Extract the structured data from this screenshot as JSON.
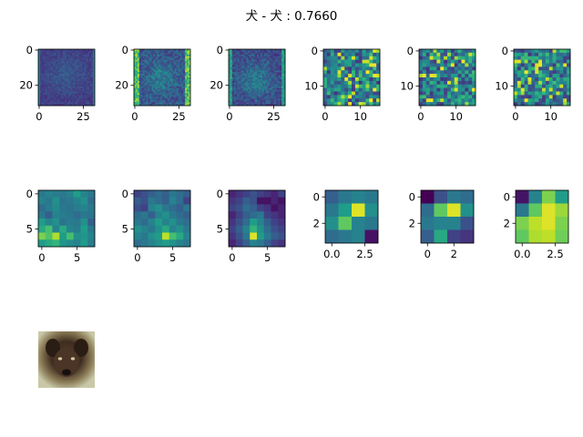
{
  "title": "犬 - 犬 : 0.7660",
  "colormap": "viridis",
  "chart_data": [
    {
      "type": "heatmap",
      "panel": "conv1-a",
      "size": 32,
      "pattern": "fmap32a",
      "xticks": [
        "0",
        "25"
      ],
      "yticks": [
        "0",
        "20"
      ]
    },
    {
      "type": "heatmap",
      "panel": "conv1-b",
      "size": 32,
      "pattern": "fmap32b",
      "xticks": [
        "0",
        "25"
      ],
      "yticks": [
        "0",
        "20"
      ]
    },
    {
      "type": "heatmap",
      "panel": "conv1-c",
      "size": 32,
      "pattern": "fmap32c",
      "xticks": [
        "0",
        "25"
      ],
      "yticks": [
        "0",
        "20"
      ]
    },
    {
      "type": "heatmap",
      "panel": "conv2-a",
      "size": 16,
      "pattern": "noise",
      "seed": 11,
      "xticks": [
        "0",
        "10"
      ],
      "yticks": [
        "0",
        "10"
      ]
    },
    {
      "type": "heatmap",
      "panel": "conv2-b",
      "size": 16,
      "pattern": "noise",
      "seed": 23,
      "xticks": [
        "0",
        "10"
      ],
      "yticks": [
        "0",
        "10"
      ]
    },
    {
      "type": "heatmap",
      "panel": "conv2-c",
      "size": 16,
      "pattern": "noise",
      "seed": 37,
      "xticks": [
        "0",
        "10"
      ],
      "yticks": [
        "0",
        "10"
      ]
    },
    {
      "type": "heatmap",
      "panel": "conv3-a",
      "size": 8,
      "xticks": [
        "0",
        "5"
      ],
      "yticks": [
        "0",
        "5"
      ],
      "values": [
        [
          0.4,
          0.45,
          0.42,
          0.4,
          0.45,
          0.55,
          0.45,
          0.4
        ],
        [
          0.45,
          0.4,
          0.5,
          0.38,
          0.4,
          0.45,
          0.5,
          0.35
        ],
        [
          0.35,
          0.42,
          0.48,
          0.4,
          0.38,
          0.42,
          0.45,
          0.4
        ],
        [
          0.4,
          0.3,
          0.45,
          0.42,
          0.4,
          0.35,
          0.4,
          0.38
        ],
        [
          0.55,
          0.45,
          0.5,
          0.38,
          0.42,
          0.4,
          0.5,
          0.3
        ],
        [
          0.6,
          0.7,
          0.45,
          0.6,
          0.45,
          0.42,
          0.55,
          0.4
        ],
        [
          0.8,
          0.72,
          0.88,
          0.55,
          0.7,
          0.5,
          0.52,
          0.45
        ],
        [
          0.55,
          0.6,
          0.65,
          0.52,
          0.48,
          0.45,
          0.55,
          0.42
        ]
      ]
    },
    {
      "type": "heatmap",
      "panel": "conv3-b",
      "size": 8,
      "xticks": [
        "0",
        "5"
      ],
      "yticks": [
        "0",
        "5"
      ],
      "values": [
        [
          0.2,
          0.25,
          0.3,
          0.35,
          0.3,
          0.4,
          0.35,
          0.3
        ],
        [
          0.3,
          0.25,
          0.4,
          0.35,
          0.3,
          0.45,
          0.35,
          0.2
        ],
        [
          0.25,
          0.2,
          0.45,
          0.5,
          0.4,
          0.35,
          0.3,
          0.4
        ],
        [
          0.35,
          0.4,
          0.3,
          0.45,
          0.5,
          0.4,
          0.35,
          0.3
        ],
        [
          0.4,
          0.35,
          0.45,
          0.55,
          0.45,
          0.5,
          0.4,
          0.35
        ],
        [
          0.5,
          0.45,
          0.4,
          0.5,
          0.6,
          0.45,
          0.5,
          0.4
        ],
        [
          0.45,
          0.4,
          0.5,
          0.55,
          0.9,
          0.7,
          0.6,
          0.45
        ],
        [
          0.35,
          0.4,
          0.45,
          0.5,
          0.55,
          0.5,
          0.45,
          0.4
        ]
      ]
    },
    {
      "type": "heatmap",
      "panel": "conv3-c",
      "size": 8,
      "xticks": [
        "0",
        "5"
      ],
      "yticks": [
        "0",
        "5"
      ],
      "values": [
        [
          0.1,
          0.15,
          0.2,
          0.25,
          0.2,
          0.15,
          0.1,
          0.2
        ],
        [
          0.15,
          0.2,
          0.3,
          0.25,
          0.05,
          0.05,
          0.1,
          0.05
        ],
        [
          0.2,
          0.25,
          0.35,
          0.3,
          0.2,
          0.15,
          0.05,
          0.1
        ],
        [
          0.1,
          0.2,
          0.3,
          0.35,
          0.4,
          0.2,
          0.15,
          0.1
        ],
        [
          0.15,
          0.25,
          0.35,
          0.55,
          0.45,
          0.3,
          0.2,
          0.15
        ],
        [
          0.2,
          0.3,
          0.45,
          0.65,
          0.5,
          0.35,
          0.25,
          0.2
        ],
        [
          0.15,
          0.25,
          0.4,
          0.95,
          0.55,
          0.4,
          0.3,
          0.25
        ],
        [
          0.1,
          0.2,
          0.3,
          0.45,
          0.4,
          0.3,
          0.2,
          0.15
        ]
      ]
    },
    {
      "type": "heatmap",
      "panel": "conv4-a",
      "size": 4,
      "xticks": [
        "0.0",
        "2.5"
      ],
      "yticks": [
        "0",
        "2"
      ],
      "values": [
        [
          0.3,
          0.4,
          0.45,
          0.4
        ],
        [
          0.4,
          0.55,
          0.95,
          0.5
        ],
        [
          0.5,
          0.75,
          0.45,
          0.4
        ],
        [
          0.35,
          0.4,
          0.45,
          0.05
        ]
      ]
    },
    {
      "type": "heatmap",
      "panel": "conv4-b",
      "size": 4,
      "xticks": [
        "0",
        "2"
      ],
      "yticks": [
        "0",
        "2"
      ],
      "values": [
        [
          0.0,
          0.25,
          0.4,
          0.35
        ],
        [
          0.35,
          0.75,
          0.95,
          0.5
        ],
        [
          0.4,
          0.45,
          0.45,
          0.25
        ],
        [
          0.3,
          0.6,
          0.2,
          0.15
        ]
      ]
    },
    {
      "type": "heatmap",
      "panel": "conv4-c",
      "size": 4,
      "xticks": [
        "0.0",
        "2.5"
      ],
      "yticks": [
        "0",
        "2"
      ],
      "values": [
        [
          0.05,
          0.45,
          0.8,
          0.55
        ],
        [
          0.4,
          0.75,
          0.95,
          0.85
        ],
        [
          0.8,
          0.9,
          0.95,
          0.8
        ],
        [
          0.75,
          0.88,
          0.9,
          0.78
        ]
      ]
    }
  ],
  "input_image": {
    "label": "dog-thumbnail"
  }
}
